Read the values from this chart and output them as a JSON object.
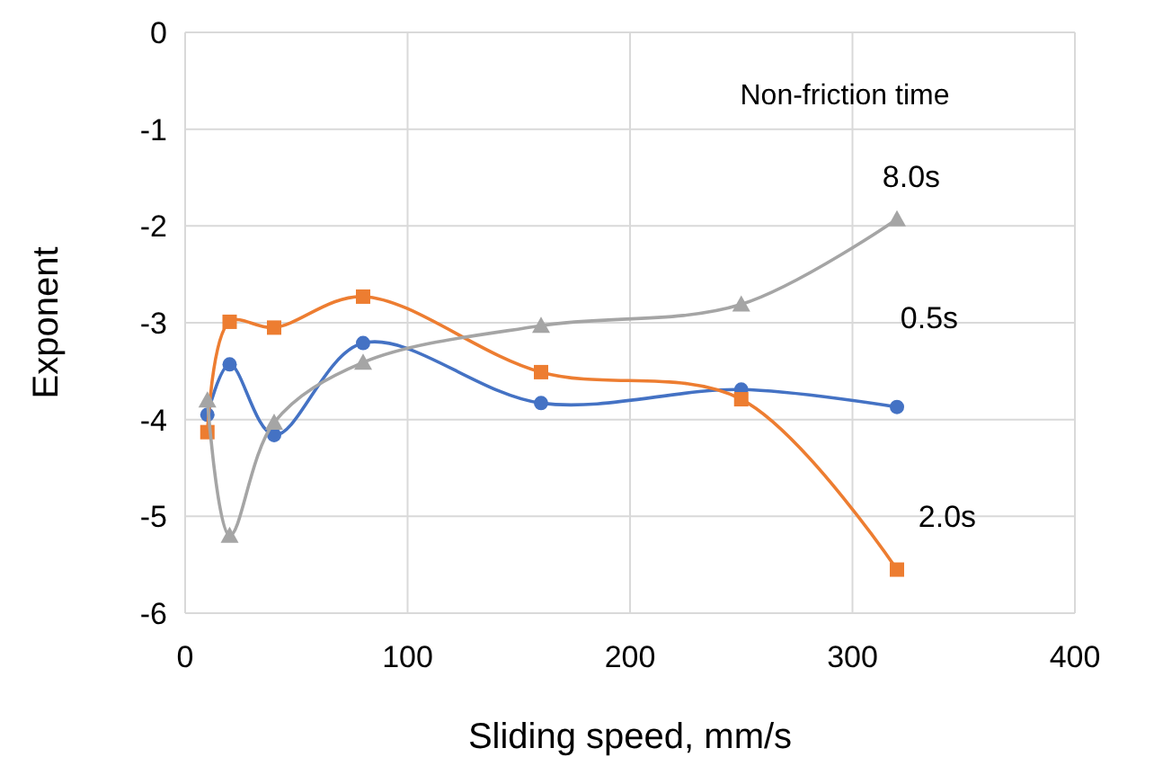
{
  "chart_data": {
    "type": "line",
    "xlabel": "Sliding speed, mm/s",
    "ylabel": "Exponent",
    "legend_title": "Non-friction time",
    "x": [
      10,
      20,
      40,
      80,
      160,
      250,
      320
    ],
    "series": [
      {
        "name": "0.5s",
        "color": "#4472c4",
        "marker": "circle",
        "values": [
          -3.95,
          -3.43,
          -4.16,
          -3.21,
          -3.83,
          -3.69,
          -3.87
        ]
      },
      {
        "name": "2.0s",
        "color": "#ed7d31",
        "marker": "square",
        "values": [
          -4.13,
          -2.99,
          -3.05,
          -2.73,
          -3.51,
          -3.79,
          -5.55
        ]
      },
      {
        "name": "8.0s",
        "color": "#a5a5a5",
        "marker": "triangle",
        "values": [
          -3.8,
          -5.2,
          -4.03,
          -3.41,
          -3.03,
          -2.81,
          -1.93
        ]
      }
    ],
    "xlim": [
      0,
      400
    ],
    "xticks": [
      0,
      100,
      200,
      300,
      400
    ],
    "ylim": [
      -6,
      0
    ],
    "yticks": [
      -6,
      -5,
      -4,
      -3,
      -2,
      -1,
      0
    ],
    "grid": true
  }
}
